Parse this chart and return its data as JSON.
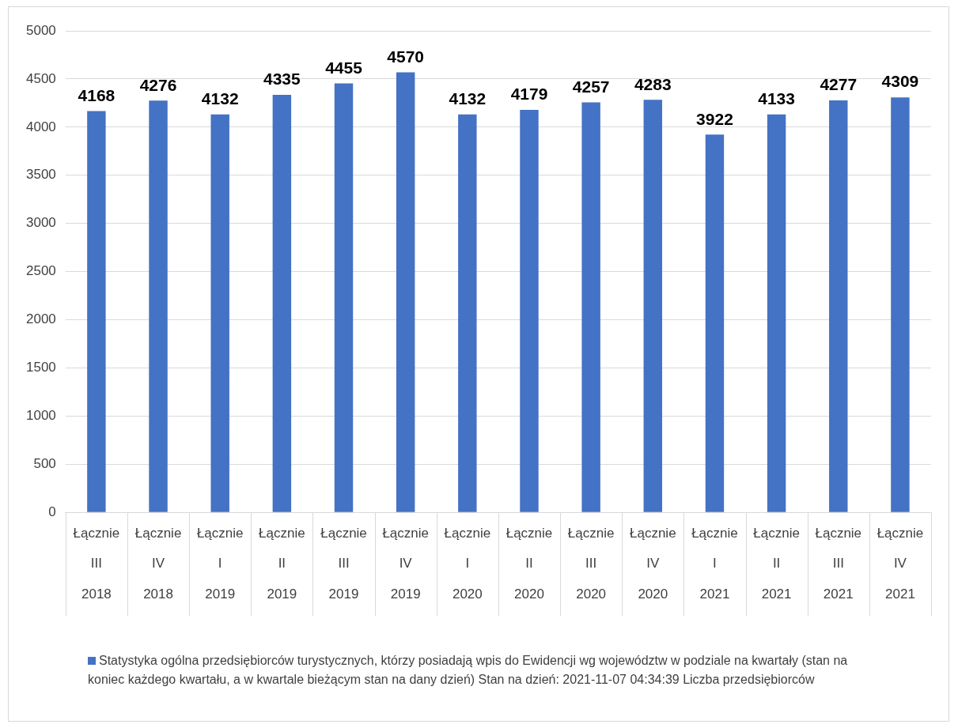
{
  "chart_data": {
    "type": "bar",
    "categories": [
      "Łącznie\nIII\n2018",
      "Łącznie\nIV\n2018",
      "Łącznie\nI\n2019",
      "Łącznie\nII\n2019",
      "Łącznie\nIII\n2019",
      "Łącznie\nIV\n2019",
      "Łącznie\nI\n2020",
      "Łącznie\nII\n2020",
      "Łącznie\nIII\n2020",
      "Łącznie\nIV\n2020",
      "Łącznie\nI\n2021",
      "Łącznie\nII\n2021",
      "Łącznie\nIII\n2021",
      "Łącznie\nIV\n2021"
    ],
    "series": [
      {
        "name": "Statystyka ogólna przedsiębiorców turystycznych, którzy posiadają wpis do Ewidencji wg województw w podziale na kwartały (stan na koniec każdego kwartału, a w kwartale bieżącym stan na dany dzień) Stan na dzień: 2021-11-07 04:34:39 Liczba przedsiębiorców",
        "color": "#4472c4",
        "values": [
          4168,
          4276,
          4132,
          4335,
          4455,
          4570,
          4132,
          4179,
          4257,
          4283,
          3922,
          4133,
          4277,
          4309
        ]
      }
    ],
    "ylim": [
      0,
      5000
    ],
    "yticks": [
      0,
      500,
      1000,
      1500,
      2000,
      2500,
      3000,
      3500,
      4000,
      4500,
      5000
    ],
    "grid": "y",
    "legend": "bottom",
    "data_labels": true
  }
}
